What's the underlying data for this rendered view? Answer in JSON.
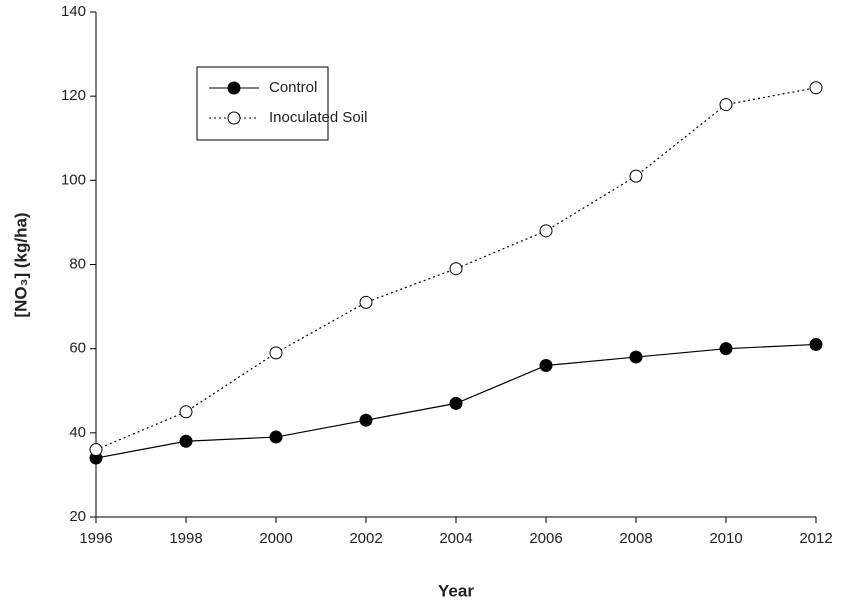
{
  "chart_data": {
    "type": "line",
    "x_label": "Year",
    "y_label": "[NO₃] (kg/ha)",
    "x": [
      1996,
      1998,
      2000,
      2002,
      2004,
      2006,
      2008,
      2010,
      2012
    ],
    "series": [
      {
        "name": "Control",
        "color": "#000000",
        "line_style": "solid",
        "marker_fill": "#000000",
        "values": [
          34,
          38,
          39,
          43,
          47,
          56,
          58,
          60,
          61
        ]
      },
      {
        "name": "Inoculated Soil",
        "color": "#000000",
        "line_style": "dotted",
        "marker_fill": "#ffffff",
        "values": [
          36,
          45,
          59,
          71,
          79,
          88,
          101,
          118,
          122
        ]
      }
    ],
    "xlim": [
      1996,
      2012
    ],
    "xticks": [
      1996,
      1998,
      2000,
      2002,
      2004,
      2006,
      2008,
      2010,
      2012
    ],
    "ylim": [
      20,
      140
    ],
    "yticks": [
      20,
      40,
      60,
      80,
      100,
      120,
      140
    ],
    "grid": false,
    "legend": "upper left"
  }
}
